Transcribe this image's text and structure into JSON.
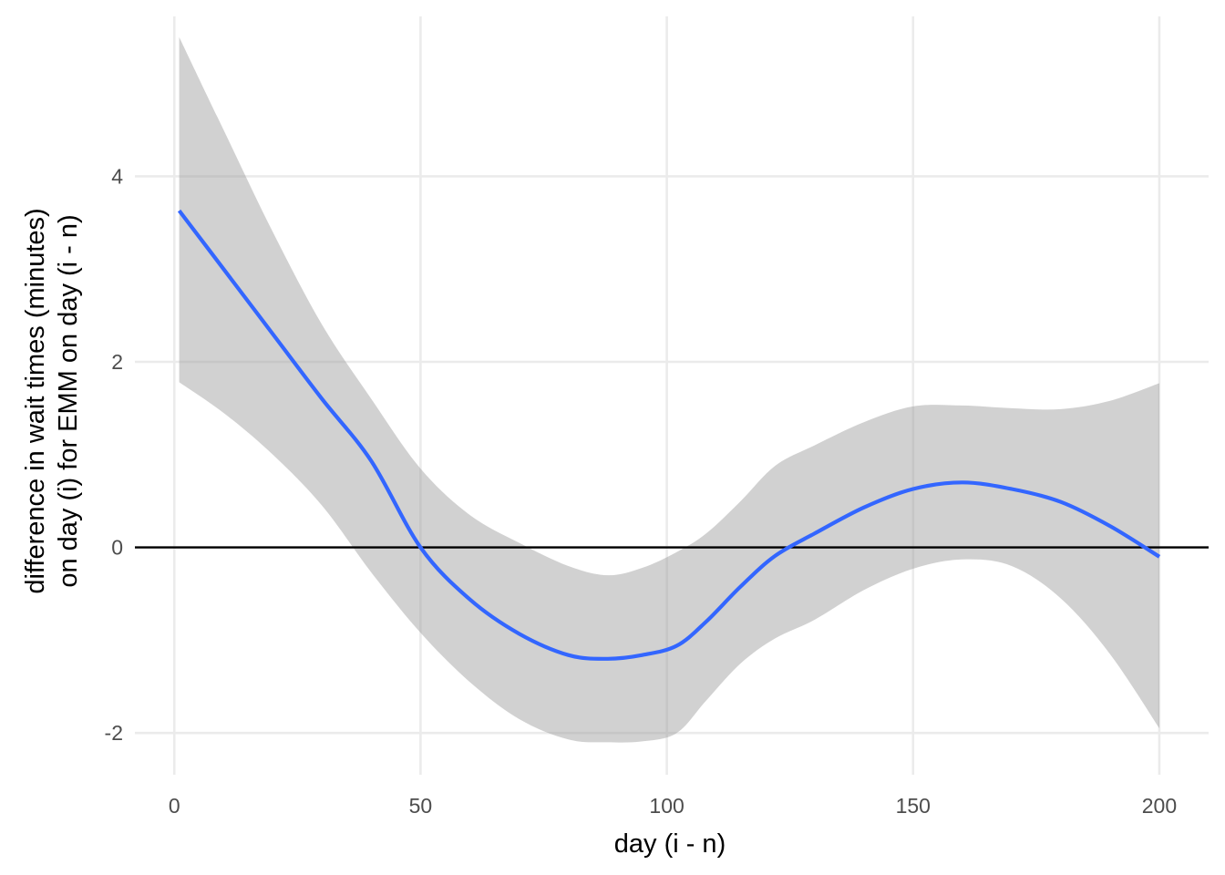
{
  "chart_data": {
    "type": "line",
    "title": "",
    "xlabel": "day (i - n)",
    "ylabel": [
      "difference in wait times (minutes)",
      "on day (i) for EMM on day (i - n)"
    ],
    "xlim": [
      -8,
      210
    ],
    "ylim": [
      -2.45,
      5.9
    ],
    "x_ticks": [
      0,
      50,
      100,
      150,
      200
    ],
    "x_tick_labels": [
      "0",
      "50",
      "100",
      "150",
      "200"
    ],
    "y_ticks": [
      -2,
      0,
      2,
      4
    ],
    "y_tick_labels": [
      "-2",
      "0",
      "2",
      "4"
    ],
    "grid": true,
    "reference_line": {
      "y": 0,
      "color": "#000000"
    },
    "series": [
      {
        "type": "line",
        "color": "#3366FF",
        "points": [
          [
            1,
            3.63
          ],
          [
            10,
            3.0
          ],
          [
            20,
            2.3
          ],
          [
            30,
            1.6
          ],
          [
            40,
            0.93
          ],
          [
            50,
            0.0
          ],
          [
            60,
            -0.56
          ],
          [
            70,
            -0.93
          ],
          [
            80,
            -1.16
          ],
          [
            88,
            -1.2
          ],
          [
            95,
            -1.16
          ],
          [
            102,
            -1.06
          ],
          [
            108,
            -0.8
          ],
          [
            115,
            -0.42
          ],
          [
            122,
            -0.09
          ],
          [
            130,
            0.15
          ],
          [
            140,
            0.43
          ],
          [
            150,
            0.63
          ],
          [
            160,
            0.7
          ],
          [
            170,
            0.63
          ],
          [
            180,
            0.49
          ],
          [
            190,
            0.23
          ],
          [
            200,
            -0.1
          ]
        ]
      }
    ],
    "ribbon": {
      "color": "#999999",
      "opacity": 0.45,
      "upper": [
        [
          1,
          5.5
        ],
        [
          10,
          4.5
        ],
        [
          20,
          3.4
        ],
        [
          30,
          2.4
        ],
        [
          40,
          1.6
        ],
        [
          50,
          0.85
        ],
        [
          60,
          0.35
        ],
        [
          70,
          0.05
        ],
        [
          80,
          -0.2
        ],
        [
          88,
          -0.3
        ],
        [
          95,
          -0.22
        ],
        [
          102,
          -0.05
        ],
        [
          108,
          0.15
        ],
        [
          115,
          0.5
        ],
        [
          122,
          0.88
        ],
        [
          130,
          1.1
        ],
        [
          140,
          1.35
        ],
        [
          150,
          1.52
        ],
        [
          160,
          1.53
        ],
        [
          170,
          1.5
        ],
        [
          180,
          1.49
        ],
        [
          190,
          1.58
        ],
        [
          200,
          1.77
        ]
      ],
      "lower": [
        [
          1,
          1.78
        ],
        [
          10,
          1.45
        ],
        [
          20,
          1.0
        ],
        [
          30,
          0.45
        ],
        [
          40,
          -0.27
        ],
        [
          50,
          -0.92
        ],
        [
          60,
          -1.45
        ],
        [
          70,
          -1.85
        ],
        [
          80,
          -2.07
        ],
        [
          88,
          -2.1
        ],
        [
          95,
          -2.09
        ],
        [
          102,
          -2.0
        ],
        [
          108,
          -1.65
        ],
        [
          115,
          -1.25
        ],
        [
          122,
          -0.98
        ],
        [
          130,
          -0.78
        ],
        [
          140,
          -0.46
        ],
        [
          150,
          -0.23
        ],
        [
          160,
          -0.13
        ],
        [
          170,
          -0.2
        ],
        [
          180,
          -0.55
        ],
        [
          190,
          -1.15
        ],
        [
          200,
          -1.95
        ]
      ]
    }
  }
}
